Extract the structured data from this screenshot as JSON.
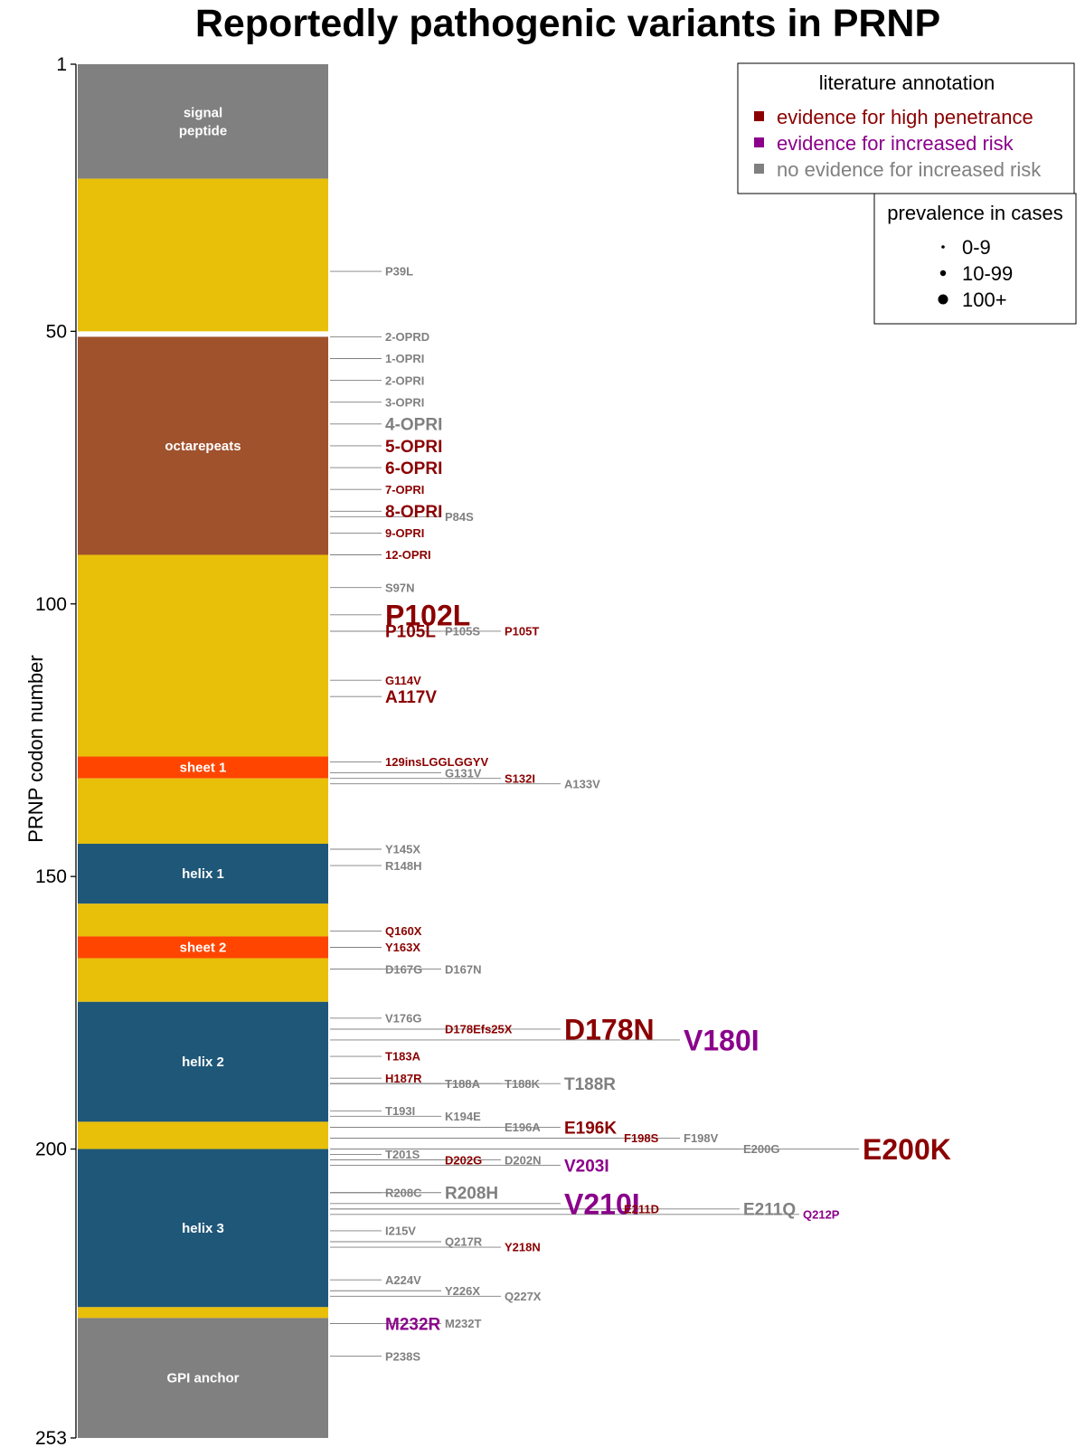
{
  "chart_data": {
    "type": "annotated-bar",
    "title": "Reportedly pathogenic variants in PRNP",
    "ylabel": "PRNP codon number",
    "ylim": [
      1,
      253
    ],
    "yticks": [
      1,
      50,
      100,
      150,
      200,
      253
    ],
    "colors": {
      "high": "#8B0000",
      "increased": "#8B008B",
      "none": "#808080",
      "signal": "#808080",
      "disordered": "#E8C00A",
      "octarepeats": "#A0522D",
      "sheet": "#FF4500",
      "helix": "#1F5779"
    },
    "domains": [
      {
        "name": "signal\npeptide",
        "start": 1,
        "end": 22,
        "type": "signal"
      },
      {
        "name": "",
        "start": 22,
        "end": 50,
        "type": "disordered"
      },
      {
        "name": "octarepeats",
        "start": 51,
        "end": 91,
        "type": "octarepeats"
      },
      {
        "name": "",
        "start": 91,
        "end": 128,
        "type": "disordered"
      },
      {
        "name": "sheet 1",
        "start": 128,
        "end": 132,
        "type": "sheet"
      },
      {
        "name": "",
        "start": 132,
        "end": 144,
        "type": "disordered"
      },
      {
        "name": "helix 1",
        "start": 144,
        "end": 155,
        "type": "helix"
      },
      {
        "name": "",
        "start": 155,
        "end": 161,
        "type": "disordered"
      },
      {
        "name": "sheet 2",
        "start": 161,
        "end": 165,
        "type": "sheet"
      },
      {
        "name": "",
        "start": 165,
        "end": 173,
        "type": "disordered"
      },
      {
        "name": "helix 2",
        "start": 173,
        "end": 195,
        "type": "helix"
      },
      {
        "name": "",
        "start": 195,
        "end": 200,
        "type": "disordered"
      },
      {
        "name": "helix 3",
        "start": 200,
        "end": 229,
        "type": "helix"
      },
      {
        "name": "",
        "start": 229,
        "end": 231,
        "type": "disordered"
      },
      {
        "name": "GPI anchor",
        "start": 231,
        "end": 253,
        "type": "signal"
      }
    ],
    "variants": [
      {
        "label": "P39L",
        "codon": 39,
        "evidence": "none",
        "prevalence": "0-9",
        "col": 0
      },
      {
        "label": "2-OPRD",
        "codon": 51,
        "evidence": "none",
        "prevalence": "0-9",
        "col": 0
      },
      {
        "label": "1-OPRI",
        "codon": 55,
        "evidence": "none",
        "prevalence": "0-9",
        "col": 0
      },
      {
        "label": "2-OPRI",
        "codon": 59,
        "evidence": "none",
        "prevalence": "0-9",
        "col": 0
      },
      {
        "label": "3-OPRI",
        "codon": 63,
        "evidence": "none",
        "prevalence": "0-9",
        "col": 0
      },
      {
        "label": "4-OPRI",
        "codon": 67,
        "evidence": "none",
        "prevalence": "10-99",
        "col": 0
      },
      {
        "label": "5-OPRI",
        "codon": 71,
        "evidence": "high",
        "prevalence": "10-99",
        "col": 0
      },
      {
        "label": "6-OPRI",
        "codon": 75,
        "evidence": "high",
        "prevalence": "10-99",
        "col": 0
      },
      {
        "label": "7-OPRI",
        "codon": 79,
        "evidence": "high",
        "prevalence": "0-9",
        "col": 0
      },
      {
        "label": "8-OPRI",
        "codon": 83,
        "evidence": "high",
        "prevalence": "10-99",
        "col": 0
      },
      {
        "label": "P84S",
        "codon": 84,
        "evidence": "none",
        "prevalence": "0-9",
        "col": 1
      },
      {
        "label": "9-OPRI",
        "codon": 87,
        "evidence": "high",
        "prevalence": "0-9",
        "col": 0
      },
      {
        "label": "12-OPRI",
        "codon": 91,
        "evidence": "high",
        "prevalence": "0-9",
        "col": 0
      },
      {
        "label": "S97N",
        "codon": 97,
        "evidence": "none",
        "prevalence": "0-9",
        "col": 0
      },
      {
        "label": "P102L",
        "codon": 102,
        "evidence": "high",
        "prevalence": "100+",
        "col": 0
      },
      {
        "label": "P105L",
        "codon": 105,
        "evidence": "high",
        "prevalence": "10-99",
        "col": 0
      },
      {
        "label": "P105S",
        "codon": 105,
        "evidence": "none",
        "prevalence": "0-9",
        "col": 1
      },
      {
        "label": "P105T",
        "codon": 105,
        "evidence": "high",
        "prevalence": "0-9",
        "col": 2
      },
      {
        "label": "G114V",
        "codon": 114,
        "evidence": "high",
        "prevalence": "0-9",
        "col": 0
      },
      {
        "label": "A117V",
        "codon": 117,
        "evidence": "high",
        "prevalence": "10-99",
        "col": 0
      },
      {
        "label": "129insLGGLGGYV",
        "codon": 129,
        "evidence": "high",
        "prevalence": "0-9",
        "col": 0
      },
      {
        "label": "G131V",
        "codon": 131,
        "evidence": "none",
        "prevalence": "0-9",
        "col": 1
      },
      {
        "label": "S132I",
        "codon": 132,
        "evidence": "high",
        "prevalence": "0-9",
        "col": 2
      },
      {
        "label": "A133V",
        "codon": 133,
        "evidence": "none",
        "prevalence": "0-9",
        "col": 3
      },
      {
        "label": "Y145X",
        "codon": 145,
        "evidence": "none",
        "prevalence": "0-9",
        "col": 0
      },
      {
        "label": "R148H",
        "codon": 148,
        "evidence": "none",
        "prevalence": "0-9",
        "col": 0
      },
      {
        "label": "Q160X",
        "codon": 160,
        "evidence": "high",
        "prevalence": "0-9",
        "col": 0
      },
      {
        "label": "Y163X",
        "codon": 163,
        "evidence": "high",
        "prevalence": "0-9",
        "col": 0
      },
      {
        "label": "D167G",
        "codon": 167,
        "evidence": "none",
        "prevalence": "0-9",
        "col": 0
      },
      {
        "label": "D167N",
        "codon": 167,
        "evidence": "none",
        "prevalence": "0-9",
        "col": 1
      },
      {
        "label": "V176G",
        "codon": 176,
        "evidence": "none",
        "prevalence": "0-9",
        "col": 0
      },
      {
        "label": "D178Efs25X",
        "codon": 178,
        "evidence": "high",
        "prevalence": "0-9",
        "col": 1
      },
      {
        "label": "D178N",
        "codon": 178,
        "evidence": "high",
        "prevalence": "100+",
        "col": 3
      },
      {
        "label": "V180I",
        "codon": 180,
        "evidence": "increased",
        "prevalence": "100+",
        "col": 5
      },
      {
        "label": "T183A",
        "codon": 183,
        "evidence": "high",
        "prevalence": "0-9",
        "col": 0
      },
      {
        "label": "H187R",
        "codon": 187,
        "evidence": "high",
        "prevalence": "0-9",
        "col": 0
      },
      {
        "label": "T188A",
        "codon": 188,
        "evidence": "none",
        "prevalence": "0-9",
        "col": 1
      },
      {
        "label": "T188K",
        "codon": 188,
        "evidence": "none",
        "prevalence": "0-9",
        "col": 2
      },
      {
        "label": "T188R",
        "codon": 188,
        "evidence": "none",
        "prevalence": "10-99",
        "col": 3
      },
      {
        "label": "T193I",
        "codon": 193,
        "evidence": "none",
        "prevalence": "0-9",
        "col": 0
      },
      {
        "label": "K194E",
        "codon": 194,
        "evidence": "none",
        "prevalence": "0-9",
        "col": 1
      },
      {
        "label": "E196A",
        "codon": 196,
        "evidence": "none",
        "prevalence": "0-9",
        "col": 2
      },
      {
        "label": "E196K",
        "codon": 196,
        "evidence": "high",
        "prevalence": "10-99",
        "col": 3
      },
      {
        "label": "F198S",
        "codon": 198,
        "evidence": "high",
        "prevalence": "0-9",
        "col": 4
      },
      {
        "label": "F198V",
        "codon": 198,
        "evidence": "none",
        "prevalence": "0-9",
        "col": 5
      },
      {
        "label": "E200G",
        "codon": 200,
        "evidence": "none",
        "prevalence": "0-9",
        "col": 6
      },
      {
        "label": "E200K",
        "codon": 200,
        "evidence": "high",
        "prevalence": "100+",
        "col": 8
      },
      {
        "label": "T201S",
        "codon": 201,
        "evidence": "none",
        "prevalence": "0-9",
        "col": 0
      },
      {
        "label": "D202G",
        "codon": 202,
        "evidence": "high",
        "prevalence": "0-9",
        "col": 1
      },
      {
        "label": "D202N",
        "codon": 202,
        "evidence": "none",
        "prevalence": "0-9",
        "col": 2
      },
      {
        "label": "V203I",
        "codon": 203,
        "evidence": "increased",
        "prevalence": "10-99",
        "col": 3
      },
      {
        "label": "R208C",
        "codon": 208,
        "evidence": "none",
        "prevalence": "0-9",
        "col": 0
      },
      {
        "label": "R208H",
        "codon": 208,
        "evidence": "none",
        "prevalence": "10-99",
        "col": 1
      },
      {
        "label": "V210I",
        "codon": 210,
        "evidence": "increased",
        "prevalence": "100+",
        "col": 3
      },
      {
        "label": "E211D",
        "codon": 211,
        "evidence": "high",
        "prevalence": "0-9",
        "col": 4
      },
      {
        "label": "E211Q",
        "codon": 211,
        "evidence": "none",
        "prevalence": "10-99",
        "col": 6
      },
      {
        "label": "Q212P",
        "codon": 212,
        "evidence": "increased",
        "prevalence": "0-9",
        "col": 7
      },
      {
        "label": "I215V",
        "codon": 215,
        "evidence": "none",
        "prevalence": "0-9",
        "col": 0
      },
      {
        "label": "Q217R",
        "codon": 217,
        "evidence": "none",
        "prevalence": "0-9",
        "col": 1
      },
      {
        "label": "Y218N",
        "codon": 218,
        "evidence": "high",
        "prevalence": "0-9",
        "col": 2
      },
      {
        "label": "A224V",
        "codon": 224,
        "evidence": "none",
        "prevalence": "0-9",
        "col": 0
      },
      {
        "label": "Y226X",
        "codon": 226,
        "evidence": "none",
        "prevalence": "0-9",
        "col": 1
      },
      {
        "label": "Q227X",
        "codon": 227,
        "evidence": "none",
        "prevalence": "0-9",
        "col": 2
      },
      {
        "label": "M232R",
        "codon": 232,
        "evidence": "increased",
        "prevalence": "10-99",
        "col": 0
      },
      {
        "label": "M232T",
        "codon": 232,
        "evidence": "none",
        "prevalence": "0-9",
        "col": 1
      },
      {
        "label": "P238S",
        "codon": 238,
        "evidence": "none",
        "prevalence": "0-9",
        "col": 0
      }
    ],
    "legend": {
      "title": "literature annotation",
      "placement": "top-right",
      "entries": [
        {
          "label": "evidence for high penetrance",
          "key": "high"
        },
        {
          "label": "evidence for increased risk",
          "key": "increased"
        },
        {
          "label": "no evidence for increased risk",
          "key": "none"
        }
      ]
    },
    "size_legend": {
      "title": "prevalence in cases",
      "placement": "top-right",
      "entries": [
        {
          "label": "0-9"
        },
        {
          "label": "10-99"
        },
        {
          "label": "100+"
        }
      ]
    }
  }
}
